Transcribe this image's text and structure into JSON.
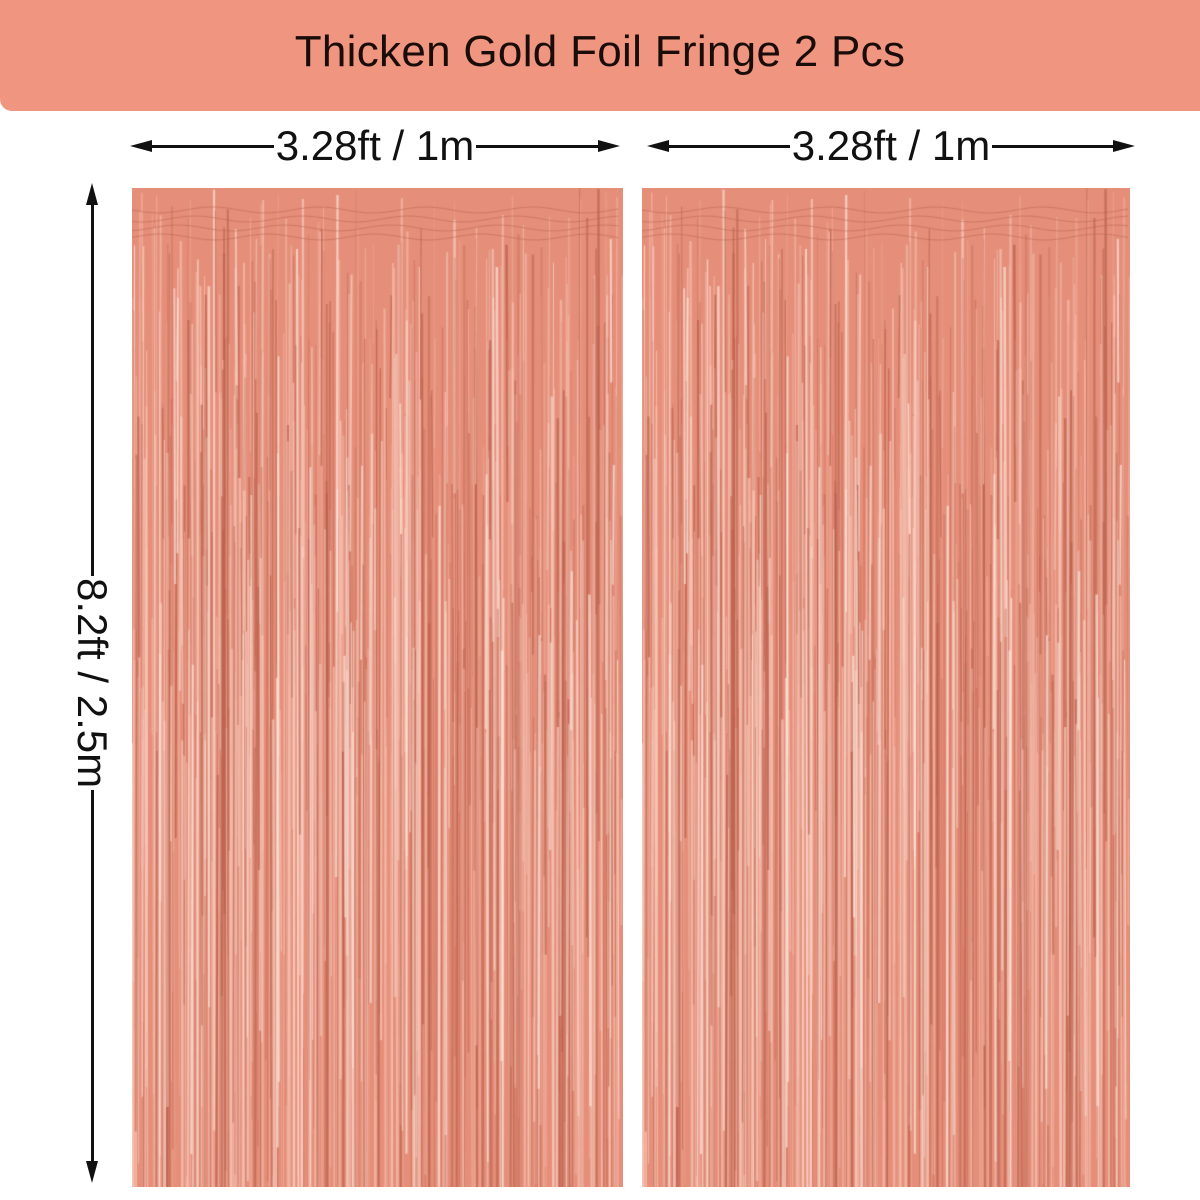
{
  "banner": {
    "title": "Thicken Gold Foil Fringe 2 Pcs",
    "color": "#ef9580"
  },
  "dimensions": {
    "width_left": "3.28ft / 1m",
    "width_right": "3.28ft / 1m",
    "height": "8.2ft / 2.5m"
  },
  "product": {
    "count": 2,
    "color_name": "rose gold",
    "base_color": "#e58f7a",
    "highlight_color": "#f8c4b4",
    "shadow_color": "#b9604c"
  }
}
